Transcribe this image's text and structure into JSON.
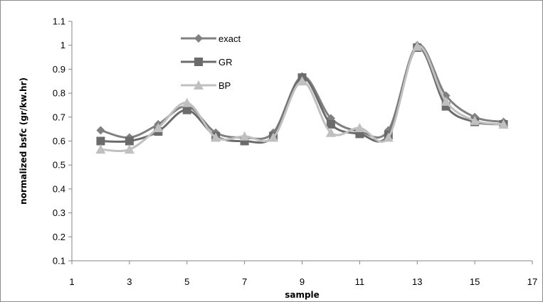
{
  "chart_data": {
    "type": "line",
    "smooth": true,
    "xlabel": "sample",
    "ylabel": "normalized bsfc (gr/kw.hr)",
    "xlim": [
      1,
      17
    ],
    "ylim": [
      0.1,
      1.1
    ],
    "xticks": [
      1,
      3,
      5,
      7,
      9,
      11,
      13,
      15,
      17
    ],
    "yticks": [
      0.1,
      0.2,
      0.3,
      0.4,
      0.5,
      0.6,
      0.7,
      0.8,
      0.9,
      1,
      1.1
    ],
    "xtick_labels": [
      "1",
      "3",
      "5",
      "7",
      "9",
      "11",
      "13",
      "15",
      "17"
    ],
    "ytick_labels": [
      "0.1",
      "0.2",
      "0.3",
      "0.4",
      "0.5",
      "0.6",
      "0.7",
      "0.8",
      "0.9",
      "1",
      "1.1"
    ],
    "grid": false,
    "legend_position": "top-left-inside",
    "x": [
      2,
      3,
      4,
      5,
      6,
      7,
      8,
      9,
      10,
      11,
      12,
      13,
      14,
      15,
      16
    ],
    "series": [
      {
        "name": "exact",
        "marker": "diamond",
        "color": "#808080",
        "values": [
          0.645,
          0.615,
          0.67,
          0.745,
          0.635,
          0.615,
          0.635,
          0.87,
          0.695,
          0.64,
          0.645,
          1.0,
          0.79,
          0.7,
          0.68
        ]
      },
      {
        "name": "GR",
        "marker": "square",
        "color": "#6b6b6b",
        "values": [
          0.6,
          0.6,
          0.64,
          0.73,
          0.62,
          0.6,
          0.62,
          0.865,
          0.67,
          0.63,
          0.625,
          0.99,
          0.745,
          0.68,
          0.67
        ]
      },
      {
        "name": "BP",
        "marker": "triangle",
        "color": "#c0c0c0",
        "values": [
          0.565,
          0.565,
          0.655,
          0.76,
          0.615,
          0.62,
          0.615,
          0.85,
          0.635,
          0.655,
          0.615,
          0.995,
          0.765,
          0.685,
          0.67
        ]
      }
    ]
  }
}
